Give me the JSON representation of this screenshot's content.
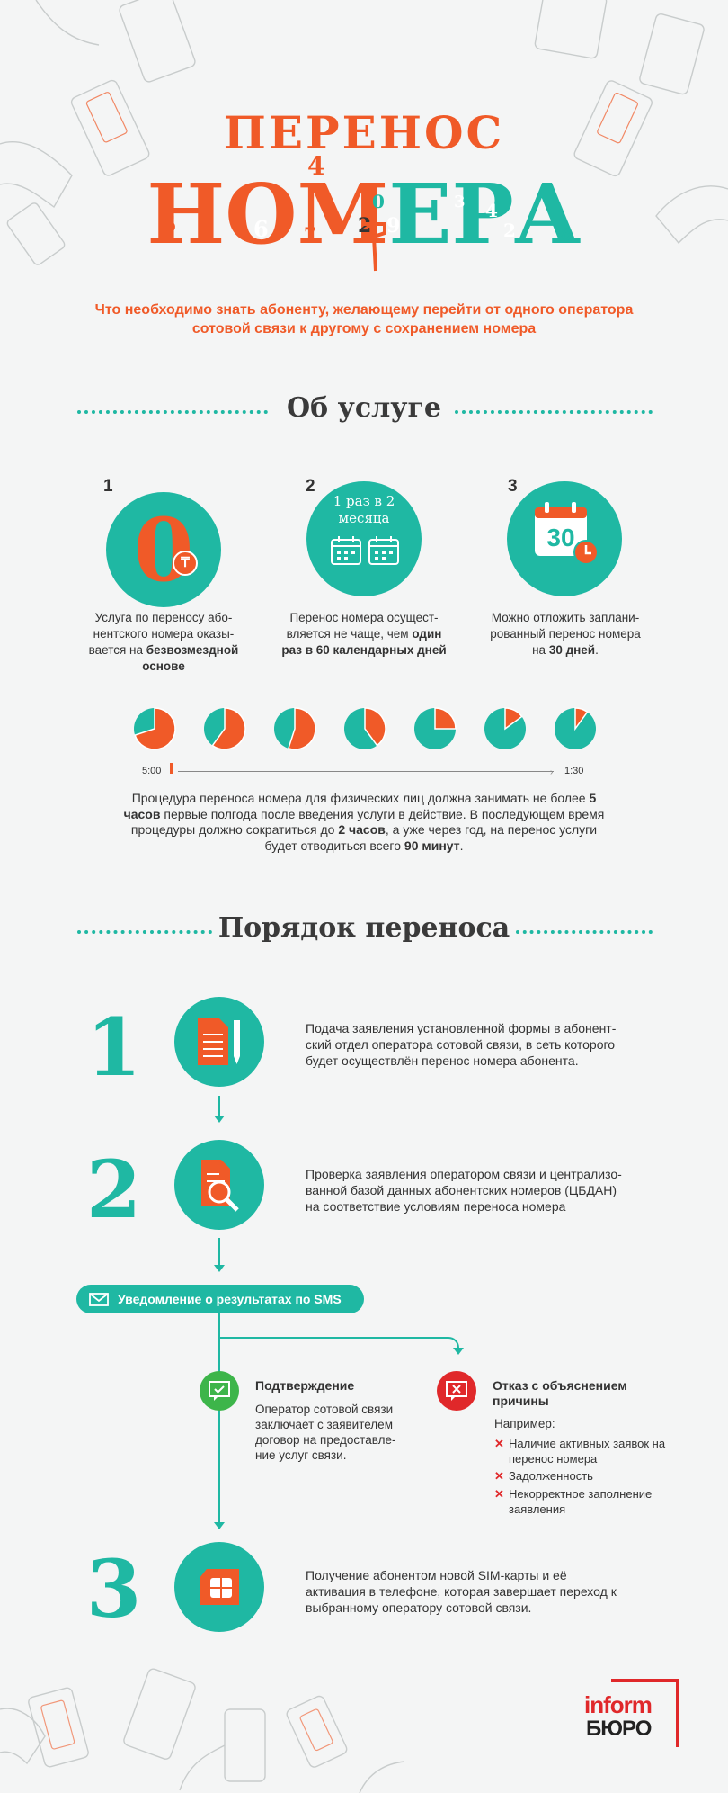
{
  "header": {
    "title_top": "ПЕРЕНОС",
    "title_bottom_a": "НОМ",
    "title_bottom_b": "ЕРА",
    "scattered_digits": [
      "4",
      "5",
      "6",
      "7",
      "0",
      "2",
      "9",
      "3",
      "4",
      "2",
      "8"
    ],
    "subtitle": "Что необходимо знать абоненту, желающему перейти от одного оператора сотовой связи к другому с сохранением номера"
  },
  "about": {
    "heading": "Об услуге",
    "items": [
      {
        "num": "1",
        "icon": "zero-tenge-icon",
        "icon_text": "0",
        "text_html_parts": [
          "Услуга по переносу або-нентского номера оказы-вается на ",
          "безвозмездной основе",
          ""
        ]
      },
      {
        "num": "2",
        "icon": "calendar-pair-icon",
        "icon_text": "1 раз в 2 месяца",
        "text_html_parts": [
          "Перенос номера осущест-вляется не чаще, чем ",
          "один раз в 60 календарных дней",
          ""
        ]
      },
      {
        "num": "3",
        "icon": "calendar-30-icon",
        "icon_text": "30",
        "text_html_parts": [
          "Можно отложить заплани-рованный перенос номера на ",
          "30 дней",
          "."
        ]
      }
    ],
    "timeline": {
      "start_label": "5:00",
      "end_label": "1:30",
      "pie_fractions": [
        0.3,
        0.4,
        0.45,
        0.6,
        0.75,
        0.85,
        0.9
      ]
    },
    "note_parts": [
      "Процедура переноса номера для физических лиц должна занимать не более ",
      "5 часов",
      " первые полгода после введения услуги в действие. В последующем время процедуры должно сократиться до ",
      "2 часов",
      ", а уже через год, на перенос услуги будет отводиться всего ",
      "90 минут",
      "."
    ]
  },
  "order": {
    "heading": "Порядок переноса",
    "steps": [
      {
        "num": "1",
        "icon": "document-pen-icon",
        "text": "Подача заявления установленной формы в абонент-ский отдел оператора сотовой связи, в сеть которого будет осуществлён перенос номера абонента."
      },
      {
        "num": "2",
        "icon": "document-search-icon",
        "text": "Проверка заявления оператором связи и централизо-ванной базой данных абонентских номеров (ЦБДАН) на соответствие условиям переноса номера"
      },
      {
        "num": "3",
        "icon": "sim-card-icon",
        "text": "Получение абонентом новой SIM-карты и её активация в телефоне, которая завершает переход к выбранному оператору сотовой связи."
      }
    ],
    "sms_label": "Уведомление о результатах по SMS",
    "confirm": {
      "title": "Подтверждение",
      "text": "Оператор сотовой связи заключает с заявителем договор на предоставле-ние услуг связи."
    },
    "reject": {
      "title": "Отказ с объяснением причины",
      "example_label": "Например:",
      "items": [
        "Наличие активных заявок на перенос номера",
        "Задолженность",
        "Некорректное заполнение заявления"
      ]
    }
  },
  "footer": {
    "logo_top": "inform",
    "logo_bottom": "БЮРО"
  },
  "colors": {
    "orange": "#f05a28",
    "teal": "#1fb8a3",
    "red": "#e0282a",
    "green": "#3db54a"
  }
}
